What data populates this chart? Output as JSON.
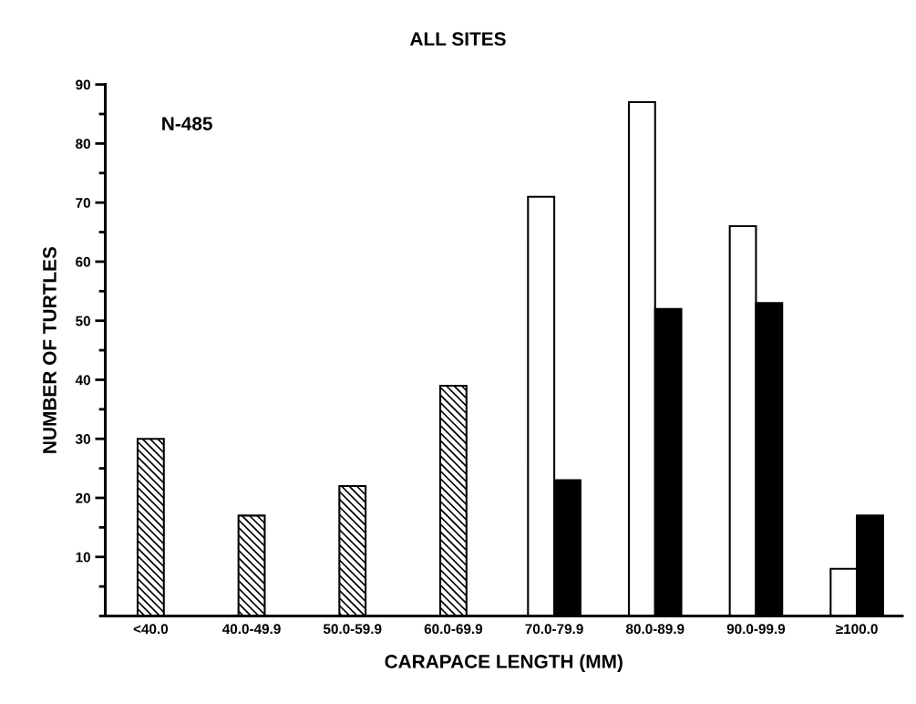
{
  "chart_data": {
    "type": "bar",
    "title": "ALL SITES",
    "xlabel": "CARAPACE LENGTH (MM)",
    "ylabel": "NUMBER OF TURTLES",
    "annotations": [
      "N-485"
    ],
    "categories": [
      "<40.0",
      "40.0-49.9",
      "50.0-59.9",
      "60.0-69.9",
      "70.0-79.9",
      "80.0-89.9",
      "90.0-99.9",
      "≥100.0"
    ],
    "series": [
      {
        "color": "#000000",
        "values": [
          30,
          17,
          22,
          39,
          null,
          null,
          null,
          null
        ]
      },
      {
        "color": "#ffffff",
        "values": [
          null,
          null,
          null,
          null,
          71,
          87,
          66,
          8
        ]
      },
      {
        "color": "#000000",
        "values": [
          null,
          null,
          null,
          null,
          23,
          52,
          53,
          17
        ]
      }
    ],
    "ylim": [
      0,
      90
    ],
    "yticks": [
      10,
      20,
      30,
      40,
      50,
      60,
      70,
      80,
      90
    ],
    "grid": false,
    "legend": false
  }
}
